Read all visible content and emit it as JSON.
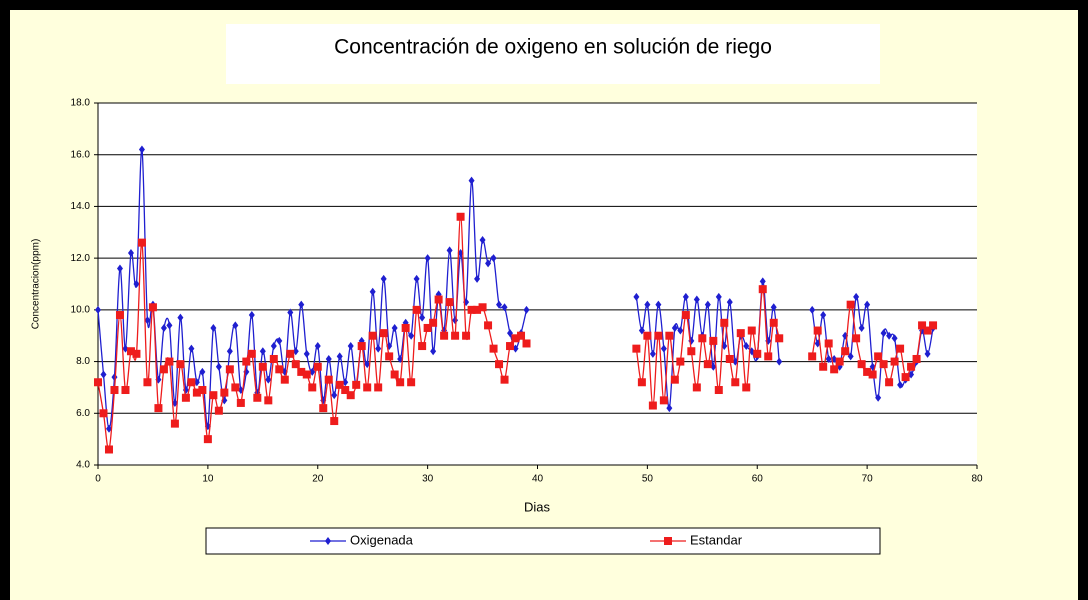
{
  "chart_data": {
    "type": "line",
    "title": "Concentración de oxigeno en solución de riego",
    "x_label": "Dias",
    "y_label": "Concentracion(ppm)",
    "xlim": [
      0,
      80
    ],
    "xticks": [
      0,
      10,
      20,
      30,
      40,
      50,
      60,
      70,
      80
    ],
    "ylim": [
      4,
      18
    ],
    "yticks": [
      {
        "value": 4,
        "label": "4.0"
      },
      {
        "value": 6,
        "label": "6.0"
      },
      {
        "value": 8,
        "label": "8.0"
      },
      {
        "value": 10,
        "label": "10.0"
      },
      {
        "value": 12,
        "label": "12.0"
      },
      {
        "value": 14,
        "label": "14.0"
      },
      {
        "value": 16,
        "label": "16.0"
      },
      {
        "value": 18,
        "label": "18.0"
      }
    ],
    "grid": true,
    "legend": "bottom",
    "x": [
      0,
      0.5,
      1,
      1.5,
      2,
      2.5,
      3,
      3.5,
      4,
      4.5,
      5,
      5.5,
      6,
      6.5,
      7,
      7.5,
      8,
      8.5,
      9,
      9.5,
      10,
      10.5,
      11,
      11.5,
      12,
      12.5,
      13,
      13.5,
      14,
      14.5,
      15,
      15.5,
      16,
      16.5,
      17,
      17.5,
      18,
      18.5,
      19,
      19.5,
      20,
      20.5,
      21,
      21.5,
      22,
      22.5,
      23,
      23.5,
      24,
      24.5,
      25,
      25.5,
      26,
      26.5,
      27,
      27.5,
      28,
      28.5,
      29,
      29.5,
      30,
      30.5,
      31,
      31.5,
      32,
      32.5,
      33,
      33.5,
      34,
      34.5,
      35,
      35.5,
      36,
      36.5,
      37,
      37.5,
      38,
      38.5,
      39,
      44,
      49,
      49.5,
      50,
      50.5,
      51,
      51.5,
      52,
      52.5,
      53,
      53.5,
      54,
      54.5,
      55,
      55.5,
      56,
      56.5,
      57,
      57.5,
      58,
      58.5,
      59,
      59.5,
      60,
      60.5,
      61,
      61.5,
      62,
      63.5,
      65,
      65.5,
      66,
      66.5,
      67,
      67.5,
      68,
      68.5,
      69,
      69.5,
      70,
      70.5,
      71,
      71.5,
      72,
      72.5,
      73,
      73.5,
      74,
      74.5,
      75,
      75.5,
      76
    ],
    "series": [
      {
        "name": "Oxigenada",
        "color": "#1f1fd0",
        "marker": "diamond",
        "values": [
          10.0,
          7.5,
          5.4,
          7.4,
          11.6,
          8.5,
          12.2,
          11.0,
          16.2,
          9.6,
          10.2,
          7.3,
          9.3,
          9.4,
          6.4,
          9.7,
          6.9,
          8.5,
          7.2,
          7.6,
          5.5,
          9.3,
          7.8,
          6.5,
          8.4,
          9.4,
          6.9,
          7.6,
          9.8,
          6.8,
          8.4,
          7.3,
          8.6,
          8.8,
          7.6,
          9.9,
          8.4,
          10.2,
          8.3,
          7.6,
          8.6,
          6.5,
          8.1,
          6.7,
          8.2,
          7.2,
          8.6,
          7.1,
          8.8,
          7.9,
          10.7,
          8.5,
          11.2,
          8.6,
          9.3,
          8.1,
          9.5,
          9.0,
          11.2,
          9.7,
          12.0,
          8.4,
          10.6,
          9.2,
          12.3,
          9.6,
          12.2,
          10.3,
          15.0,
          11.2,
          12.7,
          11.8,
          12.0,
          10.2,
          10.1,
          9.1,
          8.5,
          9.1,
          10.0,
          null,
          10.5,
          9.2,
          10.2,
          8.3,
          10.2,
          8.5,
          6.2,
          9.3,
          9.2,
          10.5,
          8.8,
          10.4,
          9.0,
          10.2,
          7.8,
          10.5,
          8.6,
          10.3,
          8.0,
          9.0,
          8.6,
          8.4,
          8.2,
          11.1,
          8.8,
          10.1,
          8.0,
          null,
          10.0,
          8.7,
          9.8,
          8.1,
          8.1,
          7.8,
          9.0,
          8.2,
          10.5,
          9.3,
          10.2,
          7.8,
          6.6,
          9.1,
          9.0,
          8.9,
          7.1,
          7.3,
          7.5,
          8.0,
          9.2,
          8.3,
          9.3
        ]
      },
      {
        "name": "Estandar",
        "color": "#ee1c1c",
        "marker": "square",
        "values": [
          7.2,
          6.0,
          4.6,
          6.9,
          9.8,
          6.9,
          8.4,
          8.3,
          12.6,
          7.2,
          10.1,
          6.2,
          7.7,
          8.0,
          5.6,
          7.9,
          6.6,
          7.2,
          6.8,
          6.9,
          5.0,
          6.7,
          6.1,
          6.8,
          7.7,
          7.0,
          6.4,
          8.0,
          8.3,
          6.6,
          7.8,
          6.5,
          8.1,
          7.7,
          7.3,
          8.3,
          7.9,
          7.6,
          7.5,
          7.0,
          7.8,
          6.2,
          7.3,
          5.7,
          7.1,
          6.9,
          6.7,
          7.1,
          8.6,
          7.0,
          9.0,
          7.0,
          9.1,
          8.2,
          7.5,
          7.2,
          9.3,
          7.2,
          10.0,
          8.6,
          9.3,
          9.5,
          10.4,
          9.0,
          10.3,
          9.0,
          13.6,
          9.0,
          10.0,
          10.0,
          10.1,
          9.4,
          8.5,
          7.9,
          7.3,
          8.6,
          8.9,
          9.0,
          8.7,
          null,
          8.5,
          7.2,
          9.0,
          6.3,
          9.0,
          6.5,
          9.0,
          7.3,
          8.0,
          9.8,
          8.4,
          7.0,
          8.9,
          7.9,
          8.8,
          6.9,
          9.5,
          8.1,
          7.2,
          9.1,
          7.0,
          9.2,
          8.3,
          10.8,
          8.2,
          9.5,
          8.9,
          null,
          8.2,
          9.2,
          7.8,
          8.7,
          7.7,
          8.0,
          8.4,
          10.2,
          8.9,
          7.9,
          7.6,
          7.5,
          8.2,
          7.9,
          7.2,
          8.0,
          8.5,
          7.4,
          7.8,
          8.1,
          9.4,
          9.2,
          9.4
        ]
      }
    ]
  }
}
